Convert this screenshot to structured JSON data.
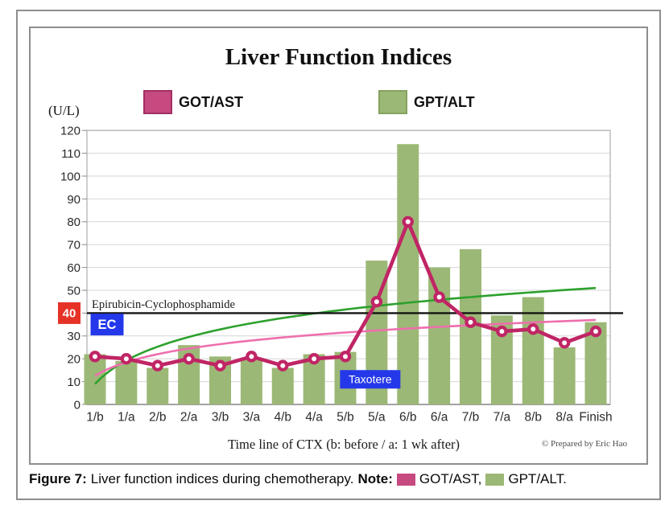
{
  "figure": {
    "title": "Liver Function Indices",
    "y_unit": "(U/L)",
    "x_axis_title": "Time line of CTX (b: before / a: 1 wk after)",
    "credit": "© Prepared by Eric Hao",
    "legend": [
      {
        "label": "GOT/AST",
        "color": "#c6497f",
        "border": "#a23065"
      },
      {
        "label": "GPT/ALT",
        "color": "#9cb876",
        "border": "#84a25e"
      }
    ]
  },
  "chart_data": {
    "type": "bar",
    "subtype": "combo bar+line",
    "categories": [
      "1/b",
      "1/a",
      "2/b",
      "2/a",
      "3/b",
      "3/a",
      "4/b",
      "4/a",
      "5/b",
      "5/a",
      "6/b",
      "6/a",
      "7/b",
      "7/a",
      "8/b",
      "8/a",
      "Finish"
    ],
    "series": [
      {
        "name": "GPT/ALT",
        "type": "bar",
        "color": "#9cb876",
        "values": [
          22,
          19,
          16,
          26,
          21,
          20,
          16,
          22,
          23,
          63,
          114,
          60,
          68,
          39,
          47,
          25,
          36
        ]
      },
      {
        "name": "GOT/AST",
        "type": "line",
        "color": "#c02565",
        "marker": "donut-circle",
        "values": [
          21,
          20,
          17,
          20,
          17,
          21,
          17,
          20,
          21,
          45,
          80,
          47,
          36,
          32,
          33,
          27,
          32
        ]
      }
    ],
    "trendlines": [
      {
        "series": "GPT/ALT",
        "shape": "logarithmic",
        "color": "#2da12d",
        "start_value": 9,
        "end_value": 51
      },
      {
        "series": "GOT/AST",
        "shape": "logarithmic",
        "color": "#ee6fae",
        "start_value": 12.5,
        "end_value": 37
      }
    ],
    "reference_line": {
      "value": 40,
      "color": "#141414",
      "label": "Epirubicin-Cyclophosphamide",
      "axis_badge": {
        "text": "40",
        "bg": "#e63226",
        "fg": "#ffffff"
      }
    },
    "annotations": [
      {
        "text": "EC",
        "bg": "#2438ea",
        "fg": "#ffffff",
        "anchor_category": "1/b",
        "y_value": 35
      },
      {
        "text": "Taxotere",
        "bg": "#2438ea",
        "fg": "#ffffff",
        "anchor_category": "5/a",
        "y_value": 11
      }
    ],
    "title": "Liver Function Indices",
    "xlabel": "Time line of CTX (b: before / a: 1 wk after)",
    "ylabel": "(U/L)",
    "ylim": [
      0,
      120
    ],
    "ytick_step": 10,
    "grid": true,
    "legend_position": "top-center"
  },
  "caption": {
    "figure_label": "Figure 7:",
    "text": "Liver function indices during chemotherapy.",
    "note_label": "Note:",
    "notes": [
      {
        "label": "GOT/AST,",
        "color": "#c6497f"
      },
      {
        "label": "GPT/ALT.",
        "color": "#9cb876"
      }
    ]
  }
}
